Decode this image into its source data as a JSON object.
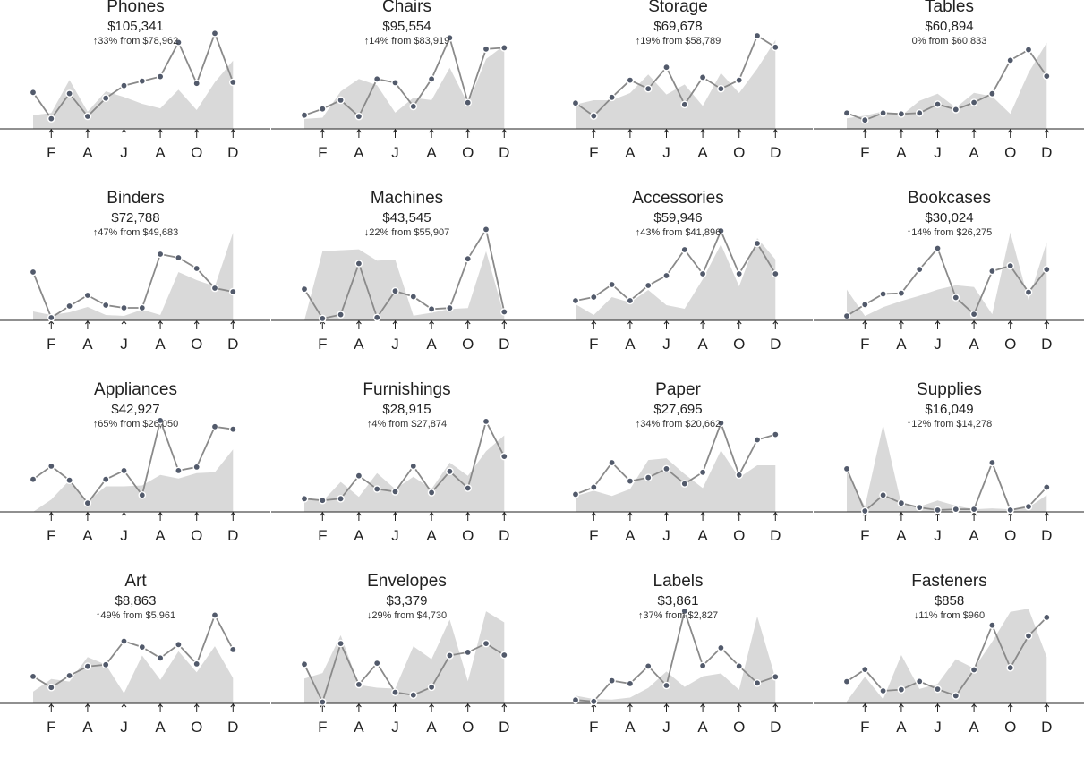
{
  "months": [
    "F",
    "A",
    "J",
    "A",
    "O",
    "D"
  ],
  "colors": {
    "line": "#8a8a8a",
    "area": "#d9d9d9",
    "point": "#525a6b",
    "axis": "#222222"
  },
  "chart_data": [
    {
      "type": "line",
      "title": "Phones",
      "total": "$105,341",
      "change": "↑33% from $78,962",
      "x": [
        1,
        2,
        3,
        4,
        5,
        6,
        7,
        8,
        9,
        10,
        11,
        12
      ],
      "series": [
        {
          "values": [
            6400,
            1800,
            6200,
            2200,
            5400,
            7600,
            8400,
            9200,
            15200,
            8000,
            16800,
            8200
          ]
        },
        {
          "values": [
            2400,
            2800,
            8600,
            3000,
            6600,
            5600,
            4400,
            3600,
            6900,
            3300,
            8200,
            12000
          ]
        }
      ],
      "ylim": [
        0,
        17000
      ]
    },
    {
      "type": "line",
      "title": "Chairs",
      "total": "$95,554",
      "change": "↑14% from $83,919",
      "x": [
        1,
        2,
        3,
        4,
        5,
        6,
        7,
        8,
        9,
        10,
        11,
        12
      ],
      "series": [
        {
          "values": [
            2200,
            3200,
            4600,
            2000,
            8000,
            7400,
            3600,
            8000,
            14600,
            4200,
            12800,
            13000
          ]
        },
        {
          "values": [
            1600,
            1800,
            6000,
            8000,
            7000,
            2600,
            5000,
            4600,
            9800,
            4000,
            11200,
            13400
          ]
        }
      ],
      "ylim": [
        0,
        15500
      ]
    },
    {
      "type": "line",
      "title": "Storage",
      "total": "$69,678",
      "change": "↑19% from $58,789",
      "x": [
        1,
        2,
        3,
        4,
        5,
        6,
        7,
        8,
        9,
        10,
        11,
        12
      ],
      "series": [
        {
          "values": [
            3600,
            1800,
            4400,
            6800,
            5600,
            8600,
            3400,
            7200,
            5600,
            6800,
            13000,
            11400
          ]
        },
        {
          "values": [
            3400,
            4000,
            4000,
            5000,
            7600,
            4800,
            6200,
            3200,
            7800,
            5000,
            8400,
            12400
          ]
        }
      ],
      "ylim": [
        0,
        13500
      ]
    },
    {
      "type": "line",
      "title": "Tables",
      "total": "$60,894",
      "change": "0% from $60,833",
      "x": [
        1,
        2,
        3,
        4,
        5,
        6,
        7,
        8,
        9,
        10,
        11,
        12
      ],
      "series": [
        {
          "values": [
            1800,
            1000,
            1800,
            1700,
            1800,
            2800,
            2200,
            3000,
            4000,
            7800,
            9000,
            6000
          ]
        },
        {
          "values": [
            1200,
            1500,
            2000,
            1500,
            3200,
            4000,
            2400,
            4100,
            3700,
            1700,
            6400,
            9800
          ]
        }
      ],
      "ylim": [
        0,
        11000
      ]
    },
    {
      "type": "line",
      "title": "Binders",
      "total": "$72,788",
      "change": "↑47% from $49,683",
      "x": [
        1,
        2,
        3,
        4,
        5,
        6,
        7,
        8,
        9,
        10,
        11,
        12
      ],
      "series": [
        {
          "values": [
            5400,
            300,
            1600,
            2800,
            1700,
            1400,
            1400,
            7400,
            7000,
            5800,
            3600,
            3200
          ]
        },
        {
          "values": [
            1000,
            600,
            900,
            1500,
            600,
            500,
            1200,
            600,
            5400,
            4500,
            3800,
            9800
          ]
        }
      ],
      "ylim": [
        0,
        10800
      ]
    },
    {
      "type": "line",
      "title": "Machines",
      "total": "$43,545",
      "change": "↓22% from $55,907",
      "x": [
        1,
        2,
        3,
        4,
        5,
        6,
        7,
        8,
        9,
        10,
        11,
        12
      ],
      "series": [
        {
          "values": [
            3300,
            200,
            600,
            6000,
            300,
            3100,
            2500,
            1200,
            1300,
            6500,
            9600,
            900
          ]
        },
        {
          "values": [
            0,
            7300,
            7400,
            7500,
            6300,
            6400,
            500,
            800,
            1200,
            1300,
            7300,
            500
          ]
        }
      ],
      "ylim": [
        0,
        10200
      ]
    },
    {
      "type": "line",
      "title": "Accessories",
      "total": "$59,946",
      "change": "↑43% from $41,896",
      "x": [
        1,
        2,
        3,
        4,
        5,
        6,
        7,
        8,
        9,
        10,
        11,
        12
      ],
      "series": [
        {
          "values": [
            2200,
            2600,
            4000,
            2200,
            3900,
            5000,
            7900,
            5200,
            10000,
            5200,
            8600,
            5200
          ]
        },
        {
          "values": [
            1800,
            600,
            2600,
            2000,
            3400,
            1700,
            1300,
            4600,
            8500,
            3800,
            9200,
            6800
          ]
        }
      ],
      "ylim": [
        0,
        10800
      ]
    },
    {
      "type": "line",
      "title": "Bookcases",
      "total": "$30,024",
      "change": "↑14% from $26,275",
      "x": [
        1,
        2,
        3,
        4,
        5,
        6,
        7,
        8,
        9,
        10,
        11,
        12
      ],
      "series": [
        {
          "values": [
            500,
            1800,
            3000,
            3100,
            5800,
            8200,
            2600,
            700,
            5600,
            6200,
            3200,
            5800
          ]
        },
        {
          "values": [
            3500,
            500,
            1500,
            2200,
            2800,
            3500,
            4000,
            3800,
            700,
            10000,
            2300,
            8900
          ]
        }
      ],
      "ylim": [
        0,
        11000
      ]
    },
    {
      "type": "line",
      "title": "Appliances",
      "total": "$42,927",
      "change": "↑65% from $26,050",
      "x": [
        1,
        2,
        3,
        4,
        5,
        6,
        7,
        8,
        9,
        10,
        11,
        12
      ],
      "series": [
        {
          "values": [
            3700,
            5200,
            3600,
            1000,
            3700,
            4700,
            1900,
            10400,
            4700,
            5100,
            9700,
            9400
          ]
        },
        {
          "values": [
            0,
            1400,
            3600,
            1200,
            2900,
            2900,
            3000,
            4200,
            3800,
            4400,
            4500,
            7100
          ]
        }
      ],
      "ylim": [
        0,
        11000
      ]
    },
    {
      "type": "line",
      "title": "Furnishings",
      "total": "$28,915",
      "change": "↑4% from $27,874",
      "x": [
        1,
        2,
        3,
        4,
        5,
        6,
        7,
        8,
        9,
        10,
        11,
        12
      ],
      "series": [
        {
          "values": [
            1500,
            1300,
            1500,
            4100,
            2600,
            2300,
            5200,
            2200,
            4600,
            2700,
            10300,
            6300
          ]
        },
        {
          "values": [
            1700,
            1200,
            3400,
            1700,
            4400,
            2600,
            4000,
            2600,
            5600,
            4100,
            6900,
            8700
          ]
        }
      ],
      "ylim": [
        0,
        11000
      ]
    },
    {
      "type": "line",
      "title": "Paper",
      "total": "$27,695",
      "change": "↑34% from $20,662",
      "x": [
        1,
        2,
        3,
        4,
        5,
        6,
        7,
        8,
        9,
        10,
        11,
        12
      ],
      "series": [
        {
          "values": [
            2000,
            2800,
            5600,
            3500,
            3900,
            4900,
            3200,
            4500,
            10100,
            4200,
            8200,
            8800
          ]
        },
        {
          "values": [
            1800,
            2400,
            1800,
            2600,
            5900,
            6100,
            4300,
            2700,
            7000,
            3900,
            5300,
            5300
          ]
        }
      ],
      "ylim": [
        0,
        11000
      ]
    },
    {
      "type": "line",
      "title": "Supplies",
      "total": "$16,049",
      "change": "↑12% from $14,278",
      "x": [
        1,
        2,
        3,
        4,
        5,
        6,
        7,
        8,
        9,
        10,
        11,
        12
      ],
      "series": [
        {
          "values": [
            4900,
            100,
            1900,
            1000,
            500,
            200,
            300,
            300,
            5600,
            200,
            600,
            2800
          ]
        },
        {
          "values": [
            4500,
            600,
            9900,
            900,
            600,
            1300,
            700,
            300,
            400,
            300,
            500,
            1900
          ]
        }
      ],
      "ylim": [
        0,
        11000
      ]
    },
    {
      "type": "line",
      "title": "Art",
      "total": "$8,863",
      "change": "↑49% from $5,961",
      "x": [
        1,
        2,
        3,
        4,
        5,
        6,
        7,
        8,
        9,
        10,
        11,
        12
      ],
      "series": [
        {
          "values": [
            320,
            190,
            330,
            440,
            460,
            740,
            670,
            540,
            700,
            470,
            1050,
            640
          ]
        },
        {
          "values": [
            140,
            290,
            260,
            550,
            460,
            120,
            570,
            280,
            620,
            370,
            680,
            300
          ]
        }
      ],
      "ylim": [
        0,
        1150
      ]
    },
    {
      "type": "line",
      "title": "Envelopes",
      "total": "$3,379",
      "change": "↓29% from $4,730",
      "x": [
        1,
        2,
        3,
        4,
        5,
        6,
        7,
        8,
        9,
        10,
        11,
        12
      ],
      "series": [
        {
          "values": [
            425,
            15,
            650,
            205,
            437,
            120,
            90,
            177,
            520,
            555,
            650,
            525
          ]
        },
        {
          "values": [
            270,
            330,
            740,
            200,
            170,
            160,
            620,
            480,
            910,
            240,
            1000,
            880
          ]
        }
      ],
      "ylim": [
        0,
        1050
      ]
    },
    {
      "type": "line",
      "title": "Labels",
      "total": "$3,861",
      "change": "↑37% from $2,827",
      "x": [
        1,
        2,
        3,
        4,
        5,
        6,
        7,
        8,
        9,
        10,
        11,
        12
      ],
      "series": [
        {
          "values": [
            35,
            20,
            235,
            205,
            385,
            185,
            955,
            390,
            575,
            385,
            210,
            275
          ]
        },
        {
          "values": [
            80,
            45,
            40,
            60,
            160,
            330,
            170,
            280,
            310,
            140,
            900,
            260
          ]
        }
      ],
      "ylim": [
        0,
        1000
      ]
    },
    {
      "type": "line",
      "title": "Fasteners",
      "total": "$858",
      "change": "↓11% from $960",
      "x": [
        1,
        2,
        3,
        4,
        5,
        6,
        7,
        8,
        9,
        10,
        11,
        12
      ],
      "series": [
        {
          "values": [
            106,
            165,
            61,
            67,
            107,
            69,
            37,
            163,
            380,
            173,
            328,
            418
          ]
        },
        {
          "values": [
            10,
            130,
            20,
            235,
            70,
            95,
            215,
            170,
            300,
            445,
            460,
            225
          ]
        }
      ],
      "ylim": [
        0,
        470
      ]
    }
  ]
}
